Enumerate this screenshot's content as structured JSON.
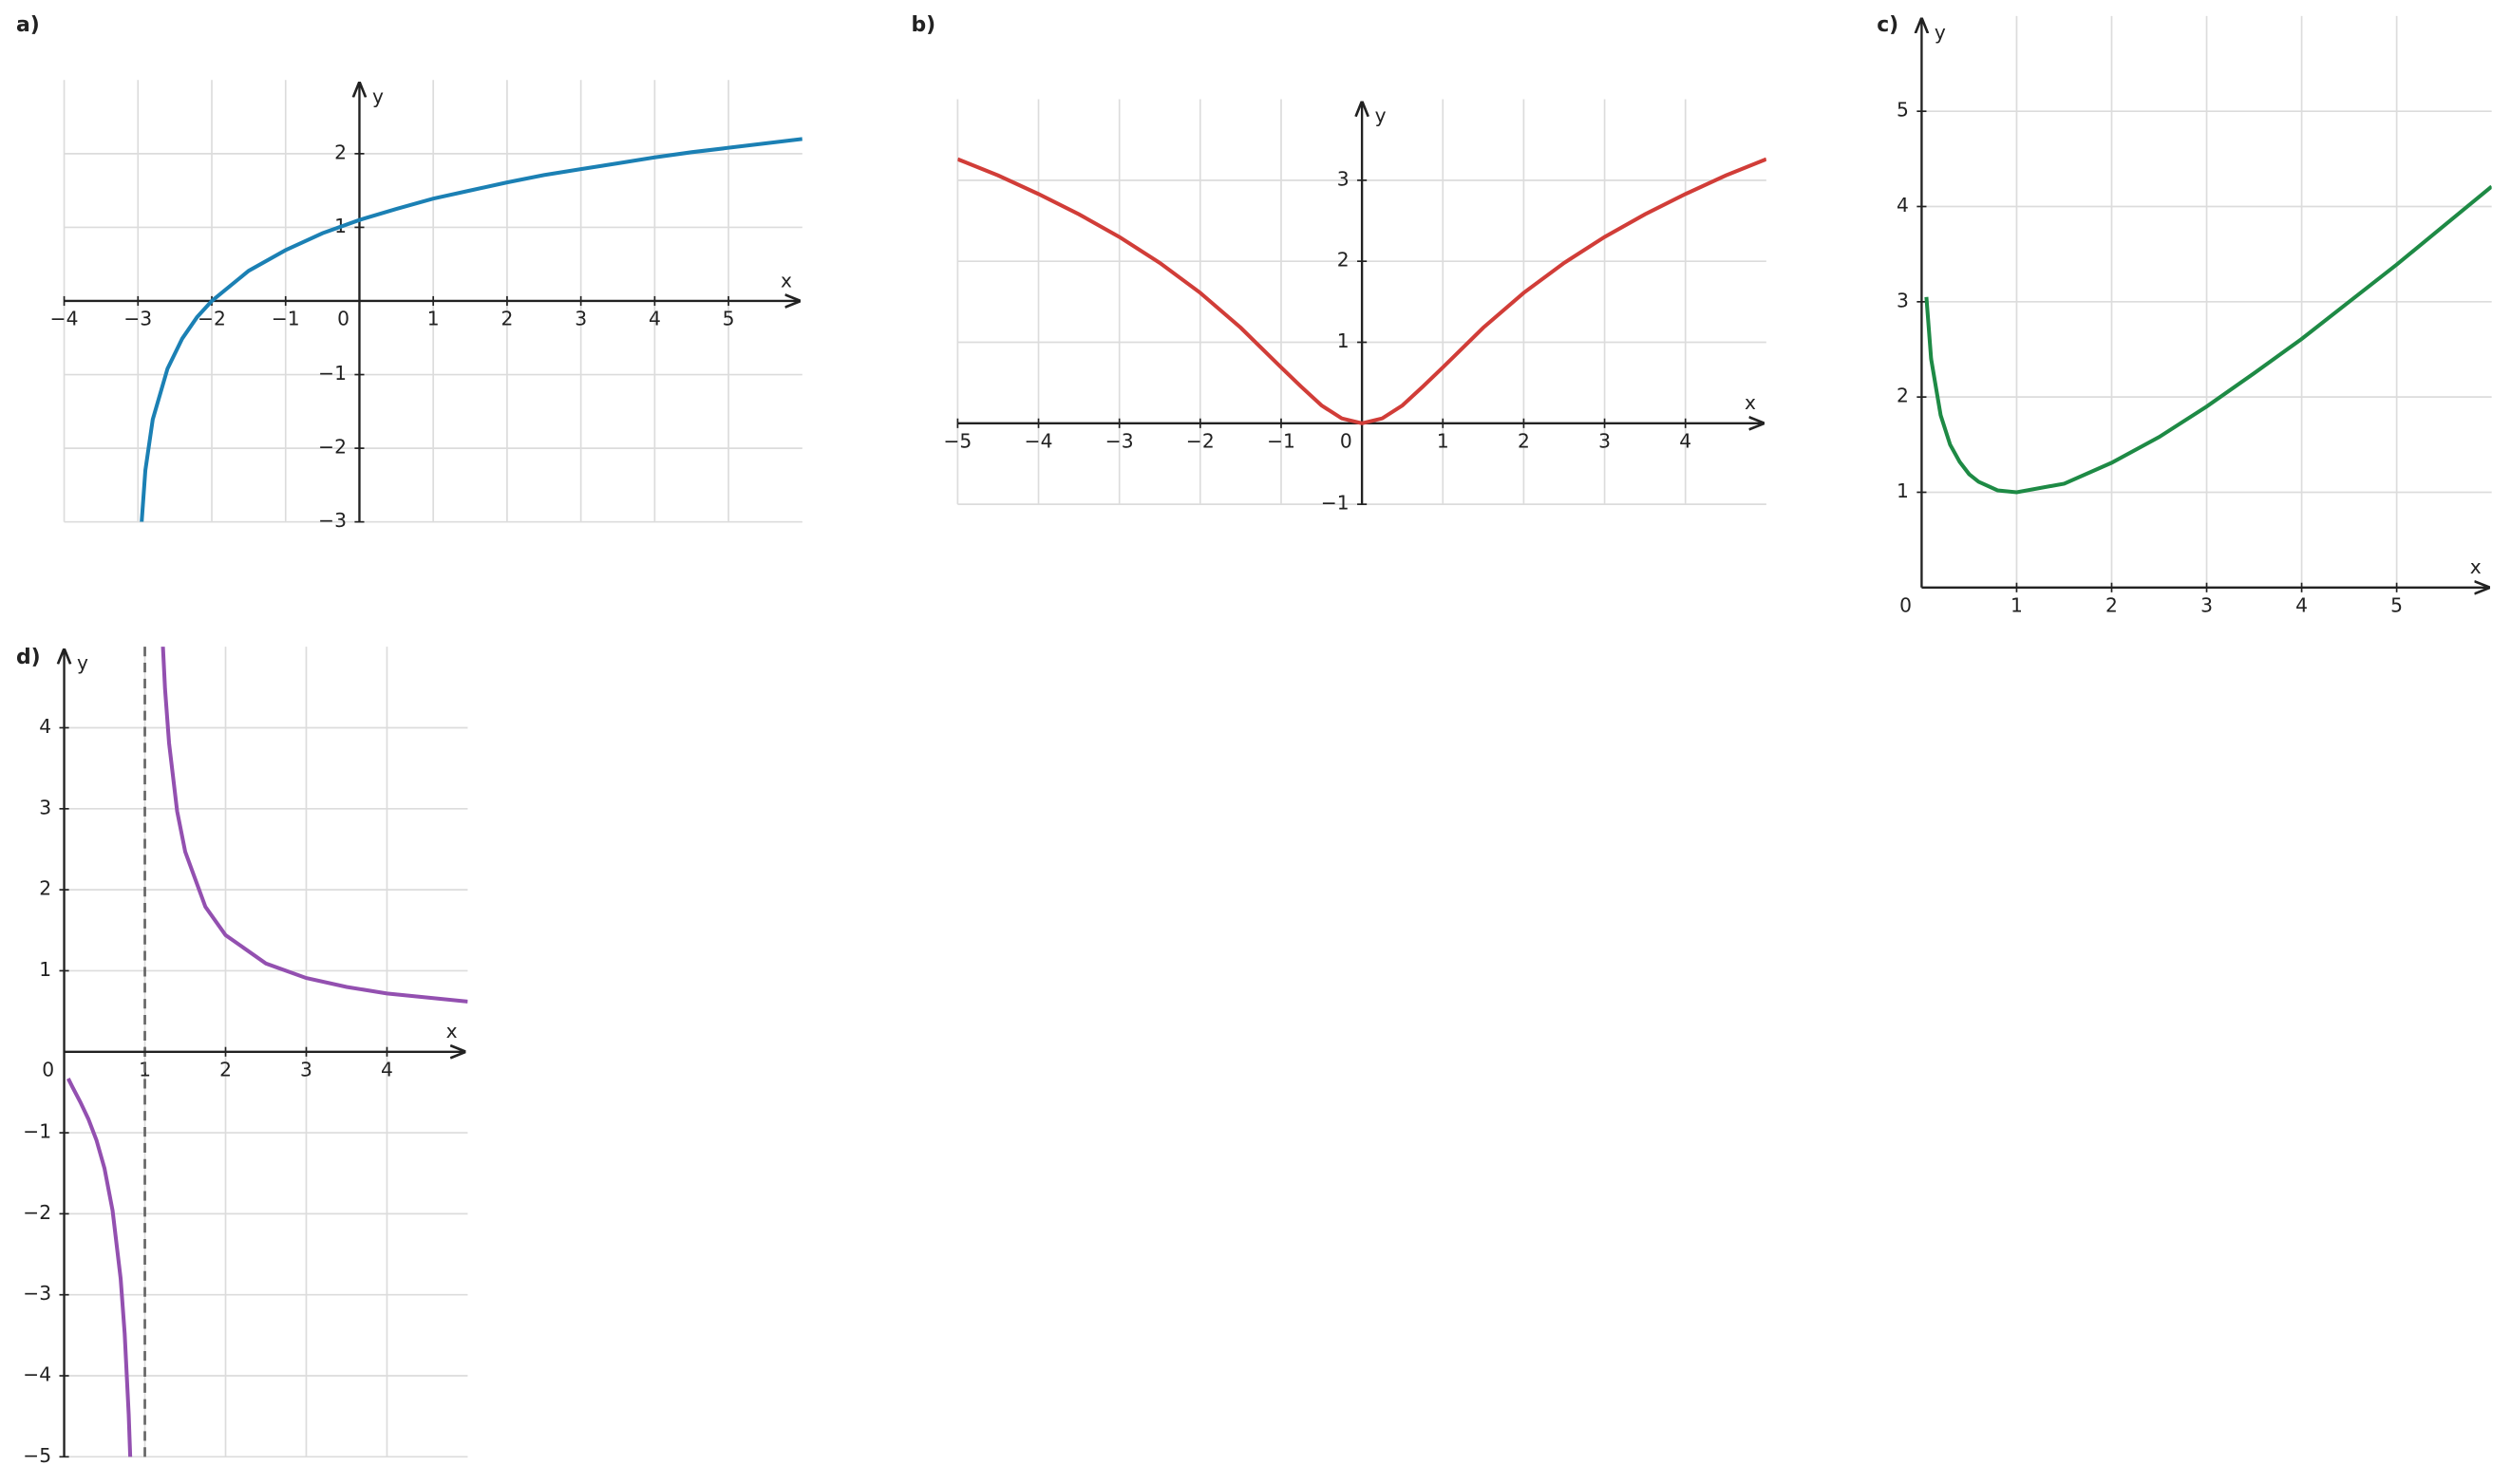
{
  "chart_data": [
    {
      "type": "line",
      "title": "a)",
      "xlabel": "x",
      "ylabel": "y",
      "color": "#1b80b4",
      "grid": true,
      "xlim": [
        -4,
        6
      ],
      "ylim": [
        -3,
        3
      ],
      "xticks": [
        {
          "value": -4,
          "label": "−4"
        },
        {
          "value": -3,
          "label": "−3"
        },
        {
          "value": -2,
          "label": "−2"
        },
        {
          "value": -1,
          "label": "−1"
        },
        0,
        1,
        2,
        3,
        4,
        5
      ],
      "yticks": [
        {
          "value": -3,
          "label": "−3"
        },
        {
          "value": -2,
          "label": "−2"
        },
        {
          "value": -1,
          "label": "−1"
        },
        1,
        2
      ],
      "x": [
        -2.95,
        -2.9,
        -2.8,
        -2.6,
        -2.4,
        -2.2,
        -2,
        -1.5,
        -1,
        -0.5,
        0,
        0.5,
        1,
        1.5,
        2,
        2.5,
        3,
        3.5,
        4,
        4.5,
        5,
        5.5,
        6
      ],
      "values": [
        -3.0,
        -2.3,
        -1.61,
        -0.92,
        -0.51,
        -0.22,
        0,
        0.41,
        0.69,
        0.92,
        1.1,
        1.25,
        1.39,
        1.5,
        1.61,
        1.71,
        1.79,
        1.87,
        1.95,
        2.02,
        2.08,
        2.14,
        2.2
      ]
    },
    {
      "type": "line",
      "title": "b)",
      "xlabel": "x",
      "ylabel": "y",
      "color": "#d13d38",
      "grid": true,
      "xlim": [
        -5,
        5
      ],
      "ylim": [
        -1,
        4
      ],
      "xticks": [
        {
          "value": -5,
          "label": "−5"
        },
        {
          "value": -4,
          "label": "−4"
        },
        {
          "value": -3,
          "label": "−3"
        },
        {
          "value": -2,
          "label": "−2"
        },
        {
          "value": -1,
          "label": "−1"
        },
        0,
        1,
        2,
        3,
        4
      ],
      "yticks": [
        {
          "value": -1,
          "label": "−1"
        },
        1,
        2,
        3
      ],
      "x": [
        -5,
        -4.5,
        -4,
        -3.5,
        -3,
        -2.5,
        -2,
        -1.5,
        -1,
        -0.75,
        -0.5,
        -0.25,
        0,
        0.25,
        0.5,
        0.75,
        1,
        1.5,
        2,
        2.5,
        3,
        3.5,
        4,
        4.5,
        5
      ],
      "values": [
        3.26,
        3.06,
        2.83,
        2.58,
        2.3,
        1.98,
        1.61,
        1.18,
        0.69,
        0.45,
        0.22,
        0.06,
        0,
        0.06,
        0.22,
        0.45,
        0.69,
        1.18,
        1.61,
        1.98,
        2.3,
        2.58,
        2.83,
        3.06,
        3.26
      ]
    },
    {
      "type": "line",
      "title": "c)",
      "xlabel": "x",
      "ylabel": "y",
      "color": "#1e8a45",
      "grid": true,
      "xlim": [
        0,
        6
      ],
      "ylim": [
        0,
        6
      ],
      "xticks": [
        0,
        1,
        2,
        3,
        4,
        5
      ],
      "yticks": [
        1,
        2,
        3,
        4,
        5
      ],
      "x": [
        0.05,
        0.1,
        0.2,
        0.3,
        0.4,
        0.5,
        0.6,
        0.8,
        1,
        1.5,
        2,
        2.5,
        3,
        3.5,
        4,
        4.5,
        5,
        5.5,
        6
      ],
      "values": [
        3.05,
        2.4,
        1.81,
        1.5,
        1.32,
        1.19,
        1.11,
        1.02,
        1,
        1.09,
        1.31,
        1.58,
        1.9,
        2.25,
        2.61,
        3.0,
        3.39,
        3.8,
        4.21
      ]
    },
    {
      "type": "line",
      "title": "d)",
      "xlabel": "x",
      "ylabel": "y",
      "color": "#9350b0",
      "grid": true,
      "xlim": [
        0,
        5
      ],
      "ylim": [
        -5,
        5
      ],
      "vline_x": 1,
      "xticks": [
        0,
        1,
        2,
        3,
        4
      ],
      "yticks": [
        {
          "value": -5,
          "label": "−5"
        },
        {
          "value": -4,
          "label": "−4"
        },
        {
          "value": -3,
          "label": "−3"
        },
        {
          "value": -2,
          "label": "−2"
        },
        {
          "value": -1,
          "label": "−1"
        },
        1,
        2,
        3,
        4
      ],
      "x": [
        0.05,
        0.1,
        0.2,
        0.3,
        0.4,
        0.5,
        0.6,
        0.7,
        0.75,
        0.8,
        0.82,
        1,
        1.2,
        1.25,
        1.3,
        1.4,
        1.5,
        1.75,
        2,
        2.5,
        3,
        3.5,
        4,
        4.5,
        5
      ],
      "values": [
        -0.33,
        -0.43,
        -0.62,
        -0.83,
        -1.09,
        -1.44,
        -1.96,
        -2.8,
        -3.48,
        -4.48,
        -5.04,
        null,
        5.48,
        4.48,
        3.81,
        2.97,
        2.47,
        1.79,
        1.44,
        1.09,
        0.91,
        0.8,
        0.72,
        0.67,
        0.62
      ]
    }
  ]
}
